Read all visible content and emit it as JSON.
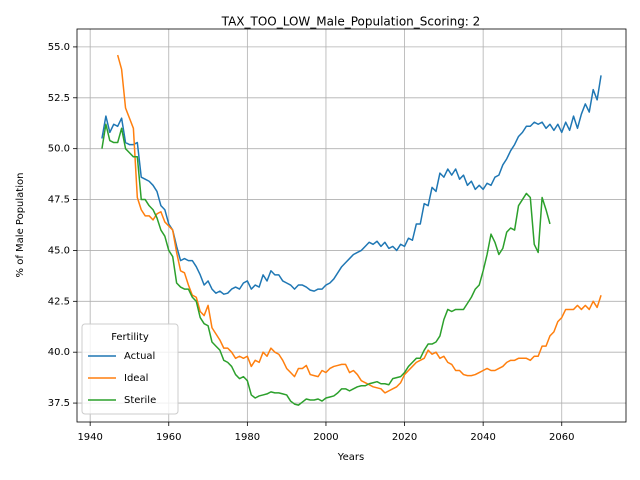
{
  "chart_data": {
    "type": "line",
    "title": "TAX_TOO_LOW_Male_Population_Scoring: 2",
    "xlabel": "Years",
    "ylabel": "% of Male Population",
    "legend_title": "Fertility",
    "legend": "lower left",
    "grid": true,
    "x": [
      1943,
      1944,
      1945,
      1946,
      1947,
      1948,
      1949,
      1950,
      1951,
      1952,
      1953,
      1954,
      1955,
      1956,
      1957,
      1958,
      1959,
      1960,
      1961,
      1962,
      1963,
      1964,
      1965,
      1966,
      1967,
      1968,
      1969,
      1970,
      1971,
      1972,
      1973,
      1974,
      1975,
      1976,
      1977,
      1978,
      1979,
      1980,
      1981,
      1982,
      1983,
      1984,
      1985,
      1986,
      1987,
      1988,
      1989,
      1990,
      1991,
      1992,
      1993,
      1994,
      1995,
      1996,
      1997,
      1998,
      1999,
      2000,
      2001,
      2002,
      2003,
      2004,
      2005,
      2006,
      2007,
      2008,
      2009,
      2010,
      2011,
      2012,
      2013,
      2014,
      2015,
      2016,
      2017,
      2018,
      2019,
      2020,
      2021,
      2022,
      2023,
      2024,
      2025,
      2026,
      2027,
      2028,
      2029,
      2030,
      2031,
      2032,
      2033,
      2034,
      2035,
      2036,
      2037,
      2038,
      2039,
      2040,
      2041,
      2042,
      2043,
      2044,
      2045,
      2046,
      2047,
      2048,
      2049,
      2050,
      2051,
      2052,
      2053,
      2054,
      2055,
      2056,
      2057,
      2058,
      2059,
      2060,
      2061,
      2062,
      2063,
      2064,
      2065,
      2066,
      2067,
      2068,
      2069,
      2070
    ],
    "series": [
      {
        "name": "Actual",
        "color": "#1f77b4",
        "values": [
          50.5,
          51.6,
          50.8,
          51.2,
          51.1,
          51.5,
          50.3,
          50.2,
          50.2,
          50.3,
          48.6,
          48.5,
          48.4,
          48.2,
          47.9,
          47.2,
          47.0,
          46.3,
          46.0,
          45.2,
          44.5,
          44.6,
          44.5,
          44.5,
          44.2,
          43.8,
          43.3,
          43.5,
          43.1,
          42.9,
          43.0,
          42.85,
          42.9,
          43.1,
          43.2,
          43.1,
          43.4,
          43.5,
          43.1,
          43.3,
          43.2,
          43.8,
          43.5,
          44.0,
          43.8,
          43.8,
          43.5,
          43.4,
          43.3,
          43.1,
          43.3,
          43.3,
          43.2,
          43.05,
          43.0,
          43.1,
          43.1,
          43.3,
          43.4,
          43.6,
          43.9,
          44.2,
          44.4,
          44.6,
          44.8,
          44.9,
          45.0,
          45.2,
          45.4,
          45.3,
          45.45,
          45.2,
          45.4,
          45.1,
          45.2,
          45.0,
          45.3,
          45.2,
          45.6,
          45.5,
          46.3,
          46.3,
          47.3,
          47.2,
          48.1,
          47.9,
          48.8,
          48.6,
          49.0,
          48.7,
          49.0,
          48.5,
          48.7,
          48.2,
          48.4,
          48.0,
          48.2,
          48.0,
          48.3,
          48.2,
          48.6,
          48.7,
          49.2,
          49.5,
          49.9,
          50.2,
          50.6,
          50.8,
          51.1,
          51.1,
          51.3,
          51.2,
          51.3,
          51.0,
          51.2,
          50.9,
          51.2,
          50.8,
          51.3,
          50.9,
          51.6,
          51.0,
          51.7,
          52.2,
          51.8,
          52.9,
          52.4,
          53.6
        ]
      },
      {
        "name": "Ideal",
        "color": "#ff7f0e",
        "values": [
          null,
          null,
          null,
          null,
          54.6,
          53.9,
          52.0,
          51.5,
          51.0,
          47.6,
          47.0,
          46.7,
          46.7,
          46.5,
          46.8,
          46.9,
          46.4,
          46.2,
          46.0,
          44.9,
          44.0,
          43.9,
          43.3,
          42.8,
          42.7,
          42.0,
          41.8,
          42.3,
          41.2,
          40.9,
          40.6,
          40.2,
          40.2,
          40.0,
          39.7,
          39.8,
          39.7,
          39.8,
          39.3,
          39.6,
          39.5,
          40.0,
          39.8,
          40.2,
          40.0,
          39.9,
          39.6,
          39.2,
          39.0,
          38.8,
          39.2,
          39.2,
          39.35,
          38.9,
          38.85,
          38.8,
          39.1,
          39.0,
          39.2,
          39.3,
          39.35,
          39.4,
          39.4,
          39.0,
          39.1,
          38.9,
          38.6,
          38.5,
          38.4,
          38.3,
          38.25,
          38.2,
          38.0,
          38.1,
          38.2,
          38.3,
          38.5,
          38.9,
          39.1,
          39.3,
          39.5,
          39.6,
          39.7,
          40.1,
          39.9,
          40.0,
          39.7,
          39.8,
          39.5,
          39.4,
          39.1,
          39.1,
          38.9,
          38.85,
          38.85,
          38.9,
          39.0,
          39.1,
          39.2,
          39.1,
          39.1,
          39.2,
          39.3,
          39.5,
          39.6,
          39.6,
          39.7,
          39.7,
          39.7,
          39.6,
          39.8,
          39.8,
          40.3,
          40.3,
          40.8,
          41.0,
          41.5,
          41.7,
          42.1,
          42.1,
          42.1,
          42.3,
          42.1,
          42.3,
          42.1,
          42.5,
          42.2,
          42.8
        ]
      },
      {
        "name": "Sterile",
        "color": "#2ca02c",
        "values": [
          50.0,
          51.2,
          50.4,
          50.3,
          50.3,
          51.0,
          50.0,
          49.8,
          49.6,
          49.6,
          47.5,
          47.5,
          47.2,
          47.0,
          46.6,
          46.0,
          45.7,
          45.0,
          44.7,
          43.4,
          43.2,
          43.1,
          43.1,
          42.7,
          42.5,
          41.7,
          41.4,
          41.3,
          40.5,
          40.3,
          40.1,
          39.6,
          39.5,
          39.3,
          38.9,
          38.7,
          38.8,
          38.6,
          37.9,
          37.75,
          37.85,
          37.9,
          37.95,
          38.05,
          38.0,
          38.0,
          37.95,
          37.9,
          37.6,
          37.45,
          37.4,
          37.55,
          37.7,
          37.65,
          37.65,
          37.7,
          37.6,
          37.75,
          37.8,
          37.85,
          38.0,
          38.2,
          38.2,
          38.1,
          38.2,
          38.3,
          38.35,
          38.35,
          38.45,
          38.5,
          38.55,
          38.45,
          38.45,
          38.4,
          38.7,
          38.75,
          38.8,
          39.0,
          39.3,
          39.5,
          39.7,
          39.7,
          40.1,
          40.4,
          40.4,
          40.5,
          40.8,
          41.6,
          42.1,
          42.0,
          42.1,
          42.1,
          42.1,
          42.4,
          42.7,
          43.1,
          43.3,
          44.0,
          44.8,
          45.8,
          45.4,
          44.8,
          45.1,
          45.9,
          46.1,
          46.0,
          47.2,
          47.5,
          47.8,
          47.6,
          45.3,
          44.9,
          47.6,
          47.0,
          46.3,
          null,
          null,
          null,
          null,
          null,
          null,
          null,
          null,
          null,
          null,
          null,
          null,
          null
        ]
      }
    ],
    "xlim": [
      1936.65,
      2076.35
    ],
    "xticks": [
      1940,
      1960,
      1980,
      2000,
      2020,
      2040,
      2060
    ],
    "ylim": [
      36.57,
      55.88
    ],
    "yticks": [
      37.5,
      {
        "value": 40,
        "label": "40.0"
      },
      42.5,
      {
        "value": 45,
        "label": "45.0"
      },
      47.5,
      {
        "value": 50,
        "label": "50.0"
      },
      52.5,
      {
        "value": 55,
        "label": "55.0"
      }
    ]
  }
}
